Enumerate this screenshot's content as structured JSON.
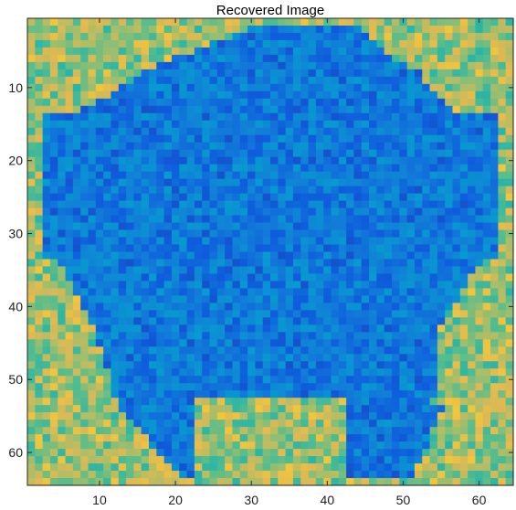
{
  "chart_data": {
    "type": "heatmap",
    "title": "Recovered Image",
    "xlabel": "",
    "ylabel": "",
    "x_range": [
      0.5,
      64.5
    ],
    "y_range": [
      0.5,
      64.5
    ],
    "grid_size": [
      64,
      64
    ],
    "y_direction": "reversed",
    "colormap": "parula",
    "x_ticks": [
      10,
      20,
      30,
      40,
      50,
      60
    ],
    "y_ticks": [
      10,
      20,
      30,
      40,
      50,
      60
    ],
    "x_tick_labels": [
      "10",
      "20",
      "30",
      "40",
      "50",
      "60"
    ],
    "y_tick_labels": [
      "10",
      "20",
      "30",
      "40",
      "50",
      "60"
    ],
    "grid": false,
    "colorbar": false
  }
}
